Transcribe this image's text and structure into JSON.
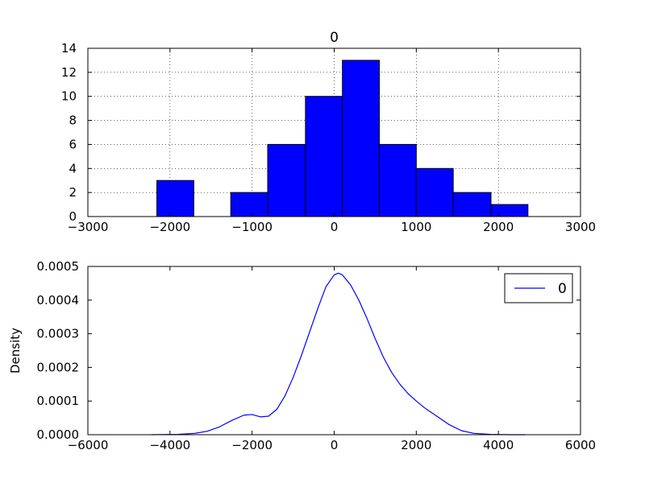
{
  "chart_data": [
    {
      "type": "bar",
      "subtype": "histogram",
      "title": "0",
      "xlabel": "",
      "ylabel": "",
      "xlim": [
        -3000,
        3000
      ],
      "ylim": [
        0,
        14
      ],
      "xticks": [
        -3000,
        -2000,
        -1000,
        0,
        1000,
        2000,
        3000
      ],
      "xtick_labels": [
        "−3000",
        "−2000",
        "−1000",
        "0",
        "1000",
        "2000",
        "3000"
      ],
      "yticks": [
        0,
        2,
        4,
        6,
        8,
        10,
        12,
        14
      ],
      "ytick_labels": [
        "0",
        "2",
        "4",
        "6",
        "8",
        "10",
        "12",
        "14"
      ],
      "grid": true,
      "bar_color": "#0000ff",
      "bins": [
        {
          "x0": -2160,
          "x1": -1710,
          "count": 3
        },
        {
          "x0": -1710,
          "x1": -1260,
          "count": 0
        },
        {
          "x0": -1260,
          "x1": -810,
          "count": 2
        },
        {
          "x0": -810,
          "x1": -350,
          "count": 6
        },
        {
          "x0": -350,
          "x1": 100,
          "count": 10
        },
        {
          "x0": 100,
          "x1": 550,
          "count": 13
        },
        {
          "x0": 550,
          "x1": 1000,
          "count": 6
        },
        {
          "x0": 1000,
          "x1": 1450,
          "count": 4
        },
        {
          "x0": 1450,
          "x1": 1910,
          "count": 2
        },
        {
          "x0": 1910,
          "x1": 2360,
          "count": 1
        }
      ]
    },
    {
      "type": "line",
      "subtype": "density",
      "title": "",
      "xlabel": "",
      "ylabel": "Density",
      "xlim": [
        -6000,
        6000
      ],
      "ylim": [
        0,
        0.0005
      ],
      "xticks": [
        -6000,
        -4000,
        -2000,
        0,
        2000,
        4000,
        6000
      ],
      "xtick_labels": [
        "−6000",
        "−4000",
        "−2000",
        "0",
        "2000",
        "4000",
        "6000"
      ],
      "yticks": [
        0,
        0.0001,
        0.0002,
        0.0003,
        0.0004,
        0.0005
      ],
      "ytick_labels": [
        "0.0000",
        "0.0001",
        "0.0002",
        "0.0003",
        "0.0004",
        "0.0005"
      ],
      "grid": false,
      "legend": "top-right",
      "series": [
        {
          "name": "0",
          "color": "#0000ff",
          "x": [
            -4450,
            -3800,
            -3400,
            -3100,
            -2800,
            -2500,
            -2200,
            -2000,
            -1800,
            -1600,
            -1400,
            -1200,
            -1000,
            -800,
            -600,
            -400,
            -200,
            0,
            100,
            200,
            400,
            600,
            800,
            1000,
            1200,
            1400,
            1600,
            1800,
            2000,
            2200,
            2500,
            2800,
            3100,
            3400,
            3800,
            4300,
            4650
          ],
          "y": [
            0,
            1e-06,
            4e-06,
            1e-05,
            2.3e-05,
            4.2e-05,
            5.8e-05,
            6e-05,
            5.3e-05,
            5.5e-05,
            7.5e-05,
            0.000115,
            0.00017,
            0.000235,
            0.000305,
            0.000375,
            0.00044,
            0.000475,
            0.00048,
            0.000475,
            0.000445,
            0.0004,
            0.000345,
            0.000285,
            0.00023,
            0.000185,
            0.00015,
            0.000122,
            0.0001,
            8e-05,
            5.5e-05,
            3e-05,
            1.2e-05,
            4e-06,
            1e-06,
            0,
            0
          ]
        }
      ]
    }
  ]
}
